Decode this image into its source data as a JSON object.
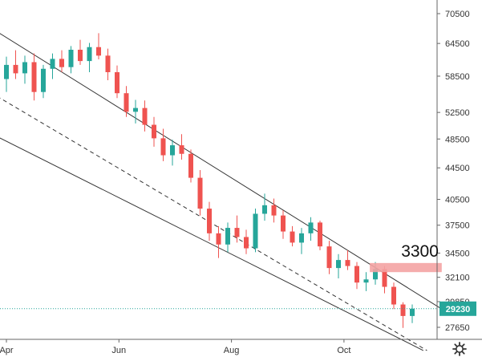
{
  "chart_data": {
    "type": "candlestick",
    "title": "",
    "xlabel": "",
    "ylabel": "",
    "y_scale": "log",
    "ylim": [
      25800,
      76000
    ],
    "x_ticks": [
      "Apr",
      "Jun",
      "Aug",
      "Oct"
    ],
    "y_ticks": [
      70500,
      64500,
      58500,
      52500,
      48500,
      44500,
      40500,
      37500,
      34500,
      32100,
      29850,
      27650
    ],
    "last_price": "29230",
    "grid": false,
    "colors": {
      "up": "#26a69a",
      "down": "#ef5350",
      "line": "#333333",
      "last_price_tag": "#26a69a",
      "zone": "#f4a3a3"
    },
    "channel": {
      "upper": {
        "from": {
          "x": "Mar 10",
          "y": 70800
        },
        "to": {
          "x": "Nov 24",
          "y": 29100
        }
      },
      "middle": {
        "from": {
          "x": "Mar 10",
          "y": 58200
        },
        "to": {
          "x": "Nov 15",
          "y": 25800
        }
      },
      "lower": {
        "from": {
          "x": "Mar 10",
          "y": 51200
        },
        "to": {
          "x": "Nov 13",
          "y": 25800
        }
      }
    },
    "zone": {
      "x_range": [
        "Oct 15",
        "Nov 23"
      ],
      "y_range": [
        32600,
        33500
      ]
    },
    "annotations": [
      {
        "text": "3300",
        "x": "Nov 1",
        "y": 34700
      }
    ],
    "candles": [
      {
        "d": "Apr 1",
        "o": 58000,
        "h": 62000,
        "l": 55800,
        "c": 60500
      },
      {
        "d": "Apr 6",
        "o": 60500,
        "h": 63200,
        "l": 58000,
        "c": 59000
      },
      {
        "d": "Apr 11",
        "o": 59000,
        "h": 62200,
        "l": 57200,
        "c": 61000
      },
      {
        "d": "Apr 16",
        "o": 61000,
        "h": 62600,
        "l": 54400,
        "c": 55800
      },
      {
        "d": "Apr 21",
        "o": 55800,
        "h": 60500,
        "l": 54800,
        "c": 59800
      },
      {
        "d": "Apr 26",
        "o": 59800,
        "h": 62600,
        "l": 58000,
        "c": 61600
      },
      {
        "d": "May 1",
        "o": 61600,
        "h": 63200,
        "l": 59200,
        "c": 60100
      },
      {
        "d": "May 6",
        "o": 60100,
        "h": 64000,
        "l": 59000,
        "c": 63300
      },
      {
        "d": "May 11",
        "o": 63300,
        "h": 65200,
        "l": 60500,
        "c": 61200
      },
      {
        "d": "May 16",
        "o": 61200,
        "h": 64600,
        "l": 59200,
        "c": 63800
      },
      {
        "d": "May 21",
        "o": 63800,
        "h": 66500,
        "l": 61500,
        "c": 62200
      },
      {
        "d": "May 26",
        "o": 62200,
        "h": 63500,
        "l": 57800,
        "c": 59200
      },
      {
        "d": "May 31",
        "o": 59200,
        "h": 60400,
        "l": 54800,
        "c": 55600
      },
      {
        "d": "Jun 5",
        "o": 55600,
        "h": 56800,
        "l": 51800,
        "c": 52600
      },
      {
        "d": "Jun 10",
        "o": 52600,
        "h": 54500,
        "l": 50800,
        "c": 53200
      },
      {
        "d": "Jun 15",
        "o": 53200,
        "h": 54400,
        "l": 49600,
        "c": 50600
      },
      {
        "d": "Jun 20",
        "o": 50600,
        "h": 51800,
        "l": 47400,
        "c": 48600
      },
      {
        "d": "Jun 25",
        "o": 48600,
        "h": 50000,
        "l": 45400,
        "c": 46200
      },
      {
        "d": "Jun 30",
        "o": 46200,
        "h": 48400,
        "l": 44800,
        "c": 47600
      },
      {
        "d": "Jul 5",
        "o": 47600,
        "h": 49200,
        "l": 45600,
        "c": 46400
      },
      {
        "d": "Jul 10",
        "o": 46400,
        "h": 47000,
        "l": 42600,
        "c": 43200
      },
      {
        "d": "Jul 15",
        "o": 43200,
        "h": 44200,
        "l": 38600,
        "c": 39400
      },
      {
        "d": "Jul 20",
        "o": 39400,
        "h": 40200,
        "l": 35800,
        "c": 36600
      },
      {
        "d": "Jul 25",
        "o": 36600,
        "h": 37400,
        "l": 34000,
        "c": 35400
      },
      {
        "d": "Jul 30",
        "o": 35400,
        "h": 37800,
        "l": 34600,
        "c": 37200
      },
      {
        "d": "Aug 4",
        "o": 37200,
        "h": 38600,
        "l": 35600,
        "c": 36200
      },
      {
        "d": "Aug 9",
        "o": 36200,
        "h": 37000,
        "l": 34400,
        "c": 35000
      },
      {
        "d": "Aug 14",
        "o": 35000,
        "h": 39400,
        "l": 34600,
        "c": 38800
      },
      {
        "d": "Aug 19",
        "o": 38800,
        "h": 41200,
        "l": 38000,
        "c": 39800
      },
      {
        "d": "Aug 24",
        "o": 39800,
        "h": 40600,
        "l": 37800,
        "c": 38600
      },
      {
        "d": "Aug 29",
        "o": 38600,
        "h": 39200,
        "l": 36000,
        "c": 36800
      },
      {
        "d": "Sep 3",
        "o": 36800,
        "h": 37400,
        "l": 35200,
        "c": 35600
      },
      {
        "d": "Sep 8",
        "o": 35600,
        "h": 37200,
        "l": 34400,
        "c": 36600
      },
      {
        "d": "Sep 13",
        "o": 36600,
        "h": 38400,
        "l": 35800,
        "c": 37800
      },
      {
        "d": "Sep 18",
        "o": 37800,
        "h": 38000,
        "l": 34800,
        "c": 35200
      },
      {
        "d": "Sep 23",
        "o": 35200,
        "h": 35800,
        "l": 32400,
        "c": 33000
      },
      {
        "d": "Sep 28",
        "o": 33000,
        "h": 34400,
        "l": 32000,
        "c": 33800
      },
      {
        "d": "Oct 3",
        "o": 33800,
        "h": 34800,
        "l": 32800,
        "c": 33200
      },
      {
        "d": "Oct 8",
        "o": 33200,
        "h": 33600,
        "l": 31000,
        "c": 31600
      },
      {
        "d": "Oct 13",
        "o": 31600,
        "h": 32600,
        "l": 30800,
        "c": 31900
      },
      {
        "d": "Oct 18",
        "o": 31900,
        "h": 33600,
        "l": 31400,
        "c": 32900
      },
      {
        "d": "Oct 23",
        "o": 32900,
        "h": 33200,
        "l": 30600,
        "c": 31200
      },
      {
        "d": "Oct 28",
        "o": 31200,
        "h": 31600,
        "l": 29200,
        "c": 29600
      },
      {
        "d": "Nov 2",
        "o": 29600,
        "h": 29800,
        "l": 27600,
        "c": 28600
      },
      {
        "d": "Nov 7",
        "o": 28600,
        "h": 29600,
        "l": 28000,
        "c": 29230
      }
    ]
  }
}
